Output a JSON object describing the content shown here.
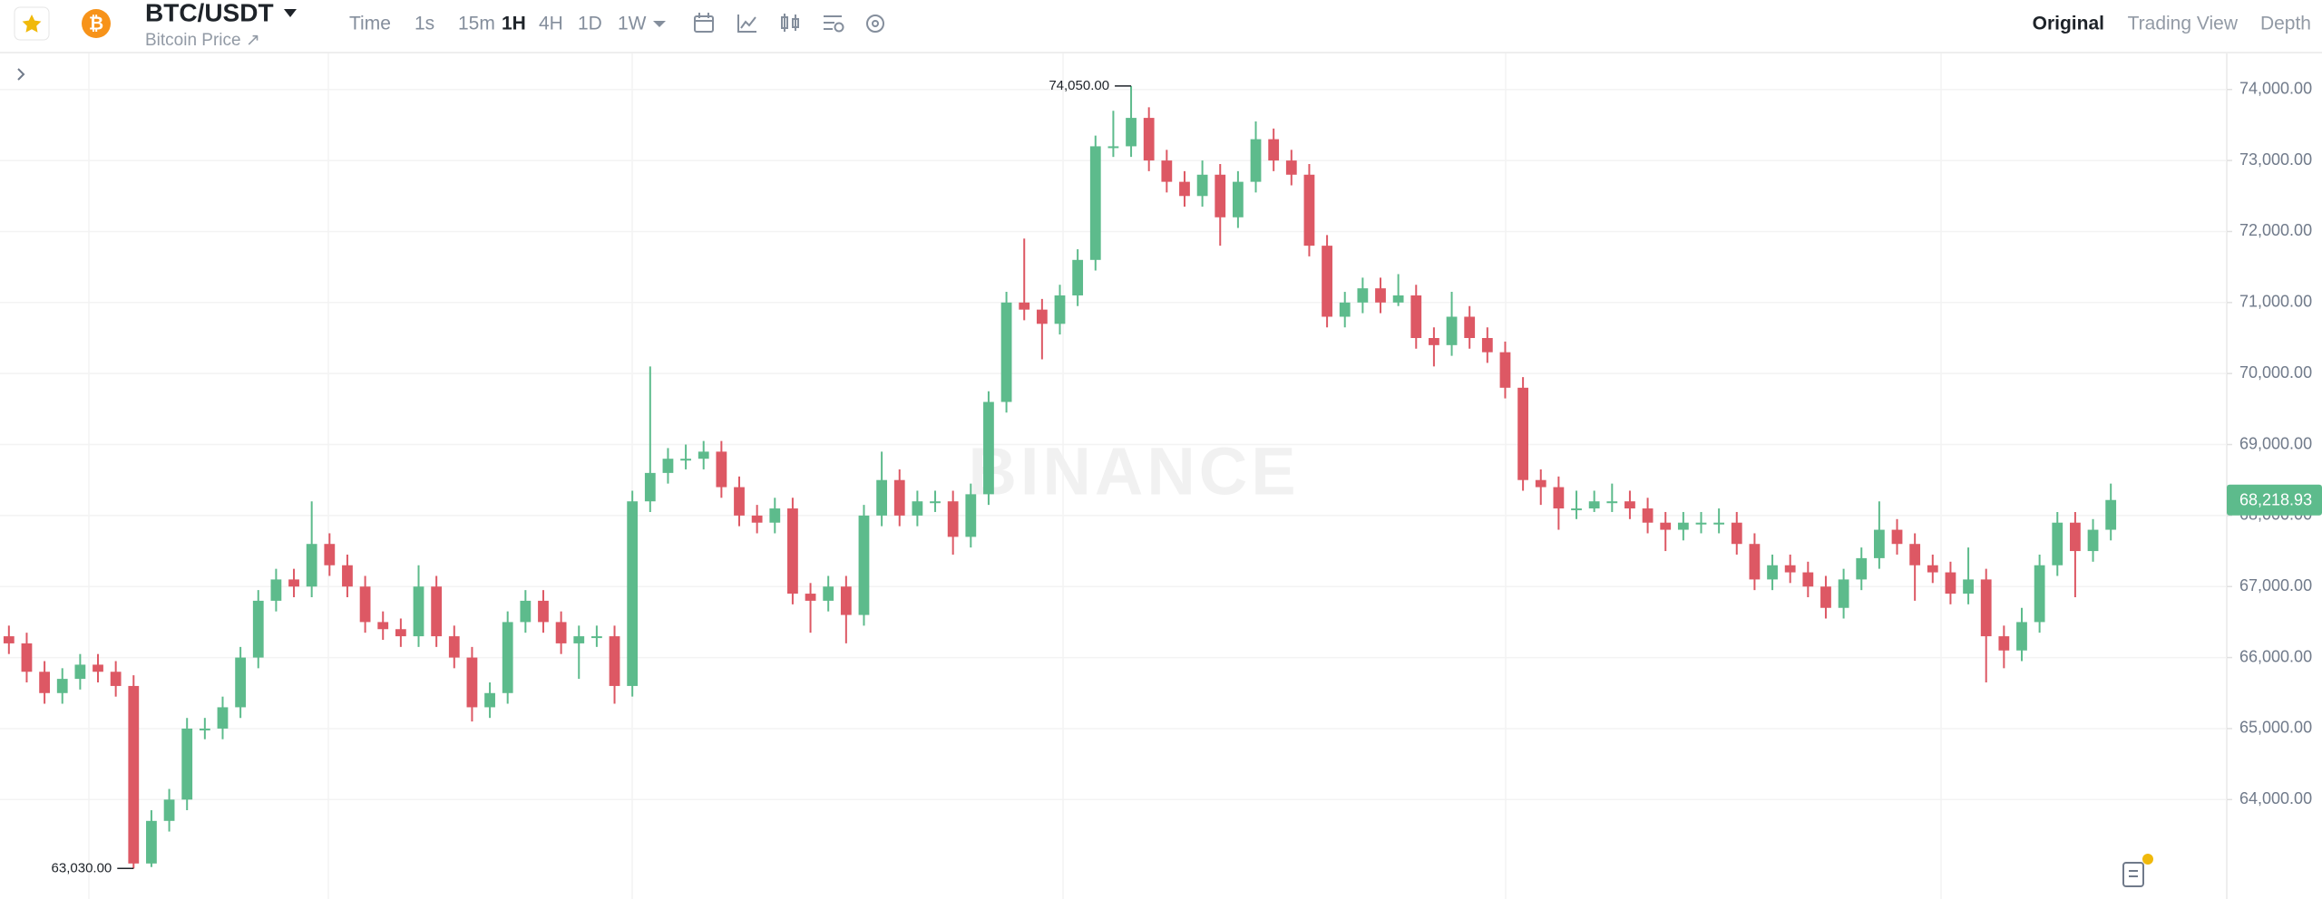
{
  "header": {
    "pair": "BTC/USDT",
    "subtitle": "Bitcoin Price ↗",
    "intervals": [
      "Time",
      "1s",
      "15m",
      "1H",
      "4H",
      "1D",
      "1W"
    ],
    "active_interval": "1H",
    "views": [
      "Original",
      "Trading View",
      "Depth"
    ],
    "active_view": "Original"
  },
  "chart_data": {
    "type": "candlestick",
    "open": [
      66300,
      66200,
      65800,
      65500,
      65700,
      65900,
      65800,
      65600,
      63100,
      63700,
      64000,
      65000,
      65000,
      65300,
      66000,
      66800,
      67100,
      67000,
      67600,
      67300,
      67000,
      66500,
      66400,
      66300,
      67000,
      66300,
      66000,
      65300,
      65500,
      66500,
      66800,
      66500,
      66200,
      66300,
      66300,
      65600,
      68200,
      68600,
      68800,
      68800,
      68900,
      68400,
      68000,
      67900,
      68100,
      66900,
      66800,
      67000,
      66600,
      68000,
      68500,
      68000,
      68200,
      68200,
      67700,
      68300,
      69600,
      71000,
      70900,
      70700,
      71100,
      71600,
      73200,
      73200,
      73600,
      73000,
      72700,
      72500,
      72800,
      72200,
      72700,
      73300,
      73000,
      72800,
      71800,
      70800,
      71000,
      71200,
      71000,
      71100,
      70500,
      70400,
      70800,
      70500,
      70300,
      69800,
      68500,
      68400,
      68100,
      68100,
      68200,
      68200,
      68100,
      67900,
      67800,
      67900,
      67900,
      67900,
      67600,
      67100,
      67300,
      67200,
      67000,
      66700,
      67100,
      67400,
      67800,
      67600,
      67300,
      67200,
      66900,
      67100,
      66300,
      66100,
      66500,
      67300,
      67900,
      67500,
      67800
    ],
    "high": [
      66450,
      66350,
      65950,
      65850,
      66050,
      66050,
      65950,
      65750,
      63850,
      64150,
      65150,
      65150,
      65450,
      66150,
      66950,
      67250,
      67250,
      68200,
      67750,
      67450,
      67150,
      66650,
      66550,
      67300,
      67150,
      66450,
      66150,
      65650,
      66650,
      66950,
      66950,
      66650,
      66450,
      66450,
      66450,
      68350,
      70100,
      68950,
      69000,
      69050,
      69050,
      68550,
      68150,
      68250,
      68250,
      67050,
      67150,
      67150,
      68150,
      68900,
      68650,
      68350,
      68350,
      68350,
      68450,
      69750,
      71150,
      71900,
      71050,
      71250,
      71750,
      73350,
      73700,
      74050,
      73750,
      73150,
      72850,
      73000,
      72950,
      72850,
      73550,
      73450,
      73150,
      72950,
      71950,
      71150,
      71350,
      71350,
      71400,
      71250,
      70650,
      71150,
      70950,
      70650,
      70450,
      69950,
      68650,
      68550,
      68350,
      68350,
      68450,
      68350,
      68250,
      68050,
      68050,
      68050,
      68100,
      68050,
      67750,
      67450,
      67450,
      67350,
      67150,
      67250,
      67550,
      68200,
      67950,
      67750,
      67450,
      67350,
      67550,
      67250,
      66450,
      66700,
      67450,
      68050,
      68050,
      67950,
      68450
    ],
    "low": [
      66050,
      65650,
      65350,
      65350,
      65550,
      65650,
      65450,
      63030,
      63050,
      63550,
      63850,
      64850,
      64850,
      65150,
      65850,
      66650,
      66850,
      66850,
      67150,
      66850,
      66350,
      66250,
      66150,
      66150,
      66150,
      65850,
      65100,
      65150,
      65350,
      66350,
      66350,
      66050,
      65700,
      66150,
      65350,
      65450,
      68050,
      68450,
      68650,
      68650,
      68250,
      67850,
      67750,
      67750,
      66750,
      66350,
      66650,
      66200,
      66450,
      67850,
      67850,
      67850,
      68050,
      67450,
      67550,
      68150,
      69450,
      70750,
      70200,
      70550,
      70950,
      71450,
      73050,
      73050,
      72850,
      72550,
      72350,
      72350,
      71800,
      72050,
      72550,
      72850,
      72650,
      71650,
      70650,
      70650,
      70850,
      70850,
      70950,
      70350,
      70100,
      70250,
      70350,
      70150,
      69650,
      68350,
      68150,
      67800,
      67950,
      68050,
      68050,
      67950,
      67750,
      67500,
      67650,
      67750,
      67750,
      67450,
      66950,
      66950,
      67050,
      66850,
      66550,
      66550,
      66950,
      67250,
      67450,
      66800,
      67050,
      66750,
      66750,
      65650,
      65850,
      65950,
      66350,
      67150,
      66850,
      67350,
      67650
    ],
    "close": [
      66200,
      65800,
      65500,
      65700,
      65900,
      65800,
      65600,
      63100,
      63700,
      64000,
      65000,
      65000,
      65300,
      66000,
      66800,
      67100,
      67000,
      67600,
      67300,
      67000,
      66500,
      66400,
      66300,
      67000,
      66300,
      66000,
      65300,
      65500,
      66500,
      66800,
      66500,
      66200,
      66300,
      66300,
      65600,
      68200,
      68600,
      68800,
      68800,
      68900,
      68400,
      68000,
      67900,
      68100,
      66900,
      66800,
      67000,
      66600,
      68000,
      68500,
      68000,
      68200,
      68200,
      67700,
      68300,
      69600,
      71000,
      70900,
      70700,
      71100,
      71600,
      73200,
      73200,
      73600,
      73000,
      72700,
      72500,
      72800,
      72200,
      72700,
      73300,
      73000,
      72800,
      71800,
      70800,
      71000,
      71200,
      71000,
      71100,
      70500,
      70400,
      70800,
      70500,
      70300,
      69800,
      68500,
      68400,
      68100,
      68100,
      68200,
      68200,
      68100,
      67900,
      67800,
      67900,
      67900,
      67900,
      67600,
      67100,
      67300,
      67200,
      67000,
      66700,
      67100,
      67400,
      67800,
      67600,
      67300,
      67200,
      66900,
      67100,
      66300,
      66100,
      66500,
      67300,
      67900,
      67500,
      67800,
      68218.93
    ],
    "up_color": "#5dbb8c",
    "down_color": "#dd5864",
    "ylim": [
      62600,
      74520
    ],
    "yticks": [
      {
        "value": 64000,
        "label": "64,000.00"
      },
      {
        "value": 65000,
        "label": "65,000.00"
      },
      {
        "value": 66000,
        "label": "66,000.00"
      },
      {
        "value": 67000,
        "label": "67,000.00"
      },
      {
        "value": 68000,
        "label": "68,000.00"
      },
      {
        "value": 69000,
        "label": "69,000.00"
      },
      {
        "value": 70000,
        "label": "70,000.00"
      },
      {
        "value": 71000,
        "label": "71,000.00"
      },
      {
        "value": 72000,
        "label": "72,000.00"
      },
      {
        "value": 73000,
        "label": "73,000.00"
      },
      {
        "value": 74000,
        "label": "74,000.00"
      }
    ],
    "grid": true,
    "annotations": [
      {
        "value": 74050,
        "label": "74,050.00"
      },
      {
        "value": 63030,
        "label": "63,030.00"
      }
    ],
    "last_price": {
      "value": 68218.93,
      "label": "68,218.93"
    },
    "watermark": "BINANCE"
  }
}
